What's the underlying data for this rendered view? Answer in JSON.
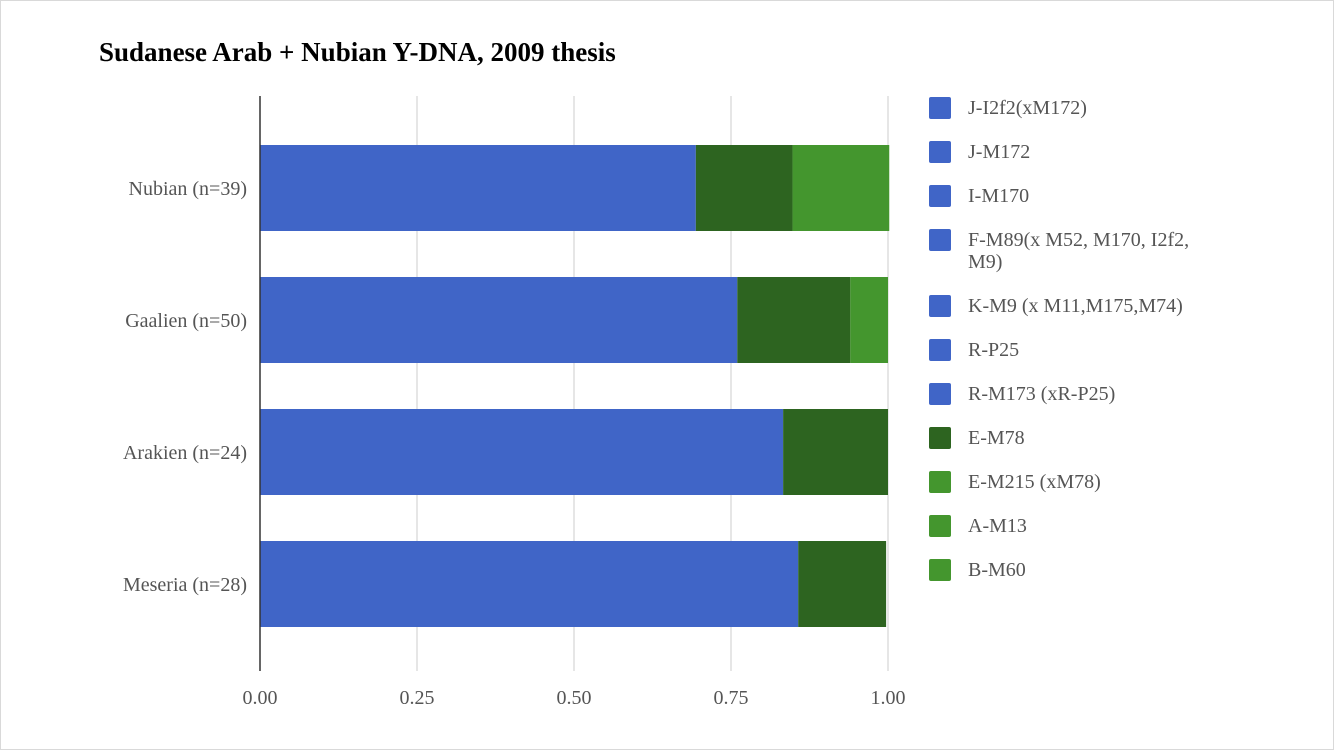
{
  "chart_data": {
    "type": "bar",
    "orientation": "horizontal",
    "stacked": true,
    "title": "Sudanese Arab + Nubian Y-DNA, 2009 thesis",
    "xlabel": "",
    "ylabel": "",
    "xlim": [
      0,
      1
    ],
    "x_ticks": [
      "0.00",
      "0.25",
      "0.50",
      "0.75",
      "1.00"
    ],
    "grid": true,
    "legend_position": "right",
    "categories": [
      "Nubian (n=39)",
      "Gaalien (n=50)",
      "Arakien (n=24)",
      "Meseria (n=28)"
    ],
    "series": [
      {
        "name": "J-I2f2(xM172)",
        "color": "#4065c7",
        "values": [
          0.694,
          0.76,
          0.833,
          0.857
        ]
      },
      {
        "name": "J-M172",
        "color": "#4065c7",
        "values": [
          0,
          0,
          0,
          0
        ]
      },
      {
        "name": "I-M170",
        "color": "#4065c7",
        "values": [
          0,
          0,
          0,
          0
        ]
      },
      {
        "name": "F-M89(x M52, M170, I2f2, M9)",
        "color": "#4065c7",
        "values": [
          0,
          0,
          0,
          0
        ]
      },
      {
        "name": "K-M9 (x M11,M175,M74)",
        "color": "#4065c7",
        "values": [
          0,
          0,
          0,
          0
        ]
      },
      {
        "name": "R-P25",
        "color": "#4065c7",
        "values": [
          0,
          0,
          0,
          0
        ]
      },
      {
        "name": "R-M173 (xR-P25)",
        "color": "#4065c7",
        "values": [
          0,
          0,
          0,
          0
        ]
      },
      {
        "name": "E-M78",
        "color": "#2d6420",
        "values": [
          0.154,
          0.18,
          0.167,
          0.14
        ]
      },
      {
        "name": "E-M215 (xM78)",
        "color": "#44962e",
        "values": [
          0.154,
          0.06,
          0,
          0
        ]
      },
      {
        "name": "A-M13",
        "color": "#44962e",
        "values": [
          0,
          0,
          0,
          0
        ]
      },
      {
        "name": "B-M60",
        "color": "#44962e",
        "values": [
          0,
          0,
          0,
          0
        ]
      }
    ],
    "legend_swatch_colors": {
      "blue": "#4065c7",
      "green": "#44962e"
    }
  },
  "colors": {
    "axis": "#333333",
    "gridline": "#cccccc",
    "tick_text": "#555555"
  }
}
